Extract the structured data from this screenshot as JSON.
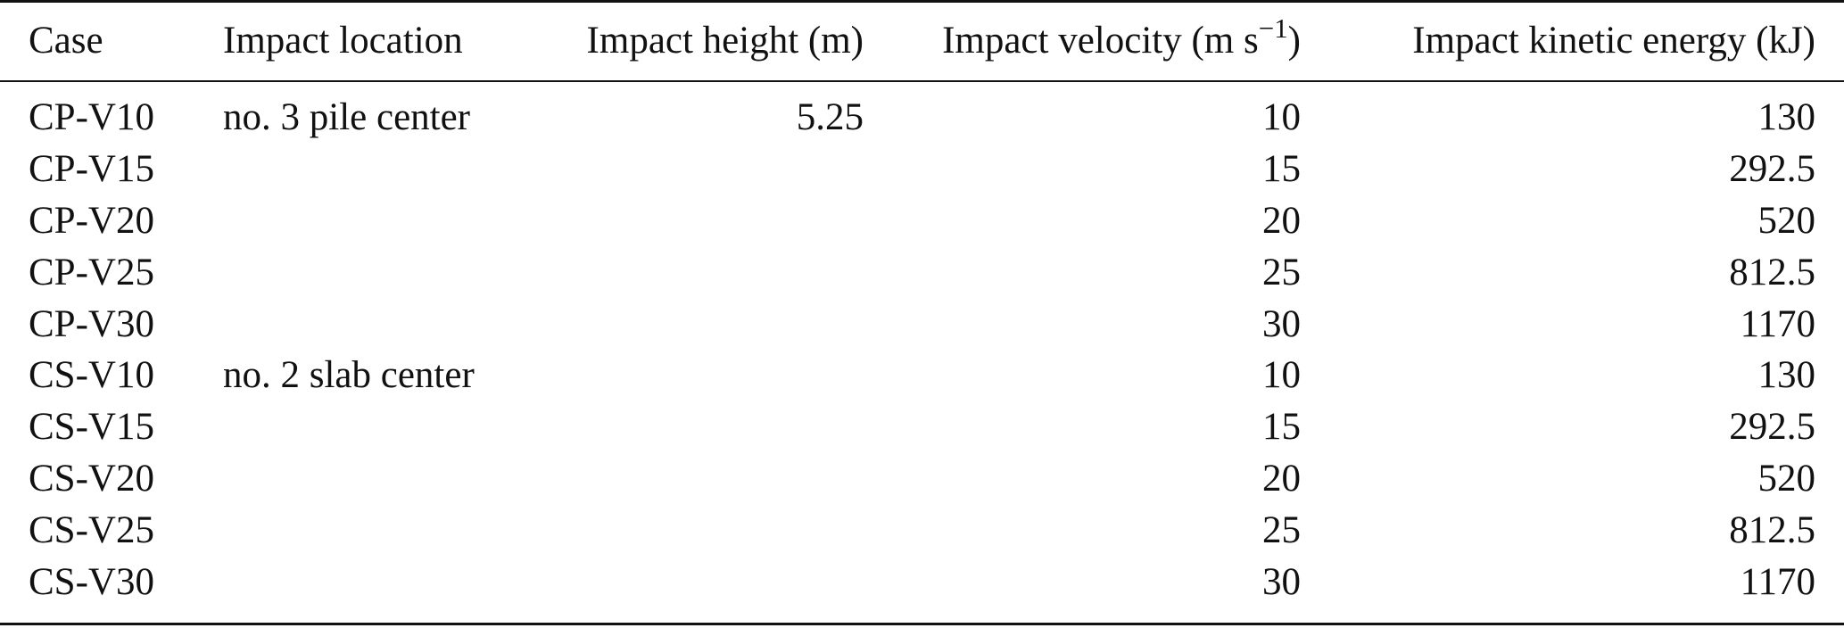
{
  "table": {
    "headers": {
      "case": "Case",
      "location": "Impact location",
      "height": "Impact height (m)",
      "velocity_prefix": "Impact velocity (m s",
      "velocity_exp": "−1",
      "velocity_suffix": ")",
      "energy": "Impact kinetic energy (kJ)"
    },
    "rows": [
      {
        "case": "CP-V10",
        "location": "no. 3 pile center",
        "height": "5.25",
        "velocity": "10",
        "energy": "130"
      },
      {
        "case": "CP-V15",
        "location": "",
        "height": "",
        "velocity": "15",
        "energy": "292.5"
      },
      {
        "case": "CP-V20",
        "location": "",
        "height": "",
        "velocity": "20",
        "energy": "520"
      },
      {
        "case": "CP-V25",
        "location": "",
        "height": "",
        "velocity": "25",
        "energy": "812.5"
      },
      {
        "case": "CP-V30",
        "location": "",
        "height": "",
        "velocity": "30",
        "energy": "1170"
      },
      {
        "case": "CS-V10",
        "location": "no. 2 slab center",
        "height": "",
        "velocity": "10",
        "energy": "130"
      },
      {
        "case": "CS-V15",
        "location": "",
        "height": "",
        "velocity": "15",
        "energy": "292.5"
      },
      {
        "case": "CS-V20",
        "location": "",
        "height": "",
        "velocity": "20",
        "energy": "520"
      },
      {
        "case": "CS-V25",
        "location": "",
        "height": "",
        "velocity": "25",
        "energy": "812.5"
      },
      {
        "case": "CS-V30",
        "location": "",
        "height": "",
        "velocity": "30",
        "energy": "1170"
      }
    ]
  }
}
